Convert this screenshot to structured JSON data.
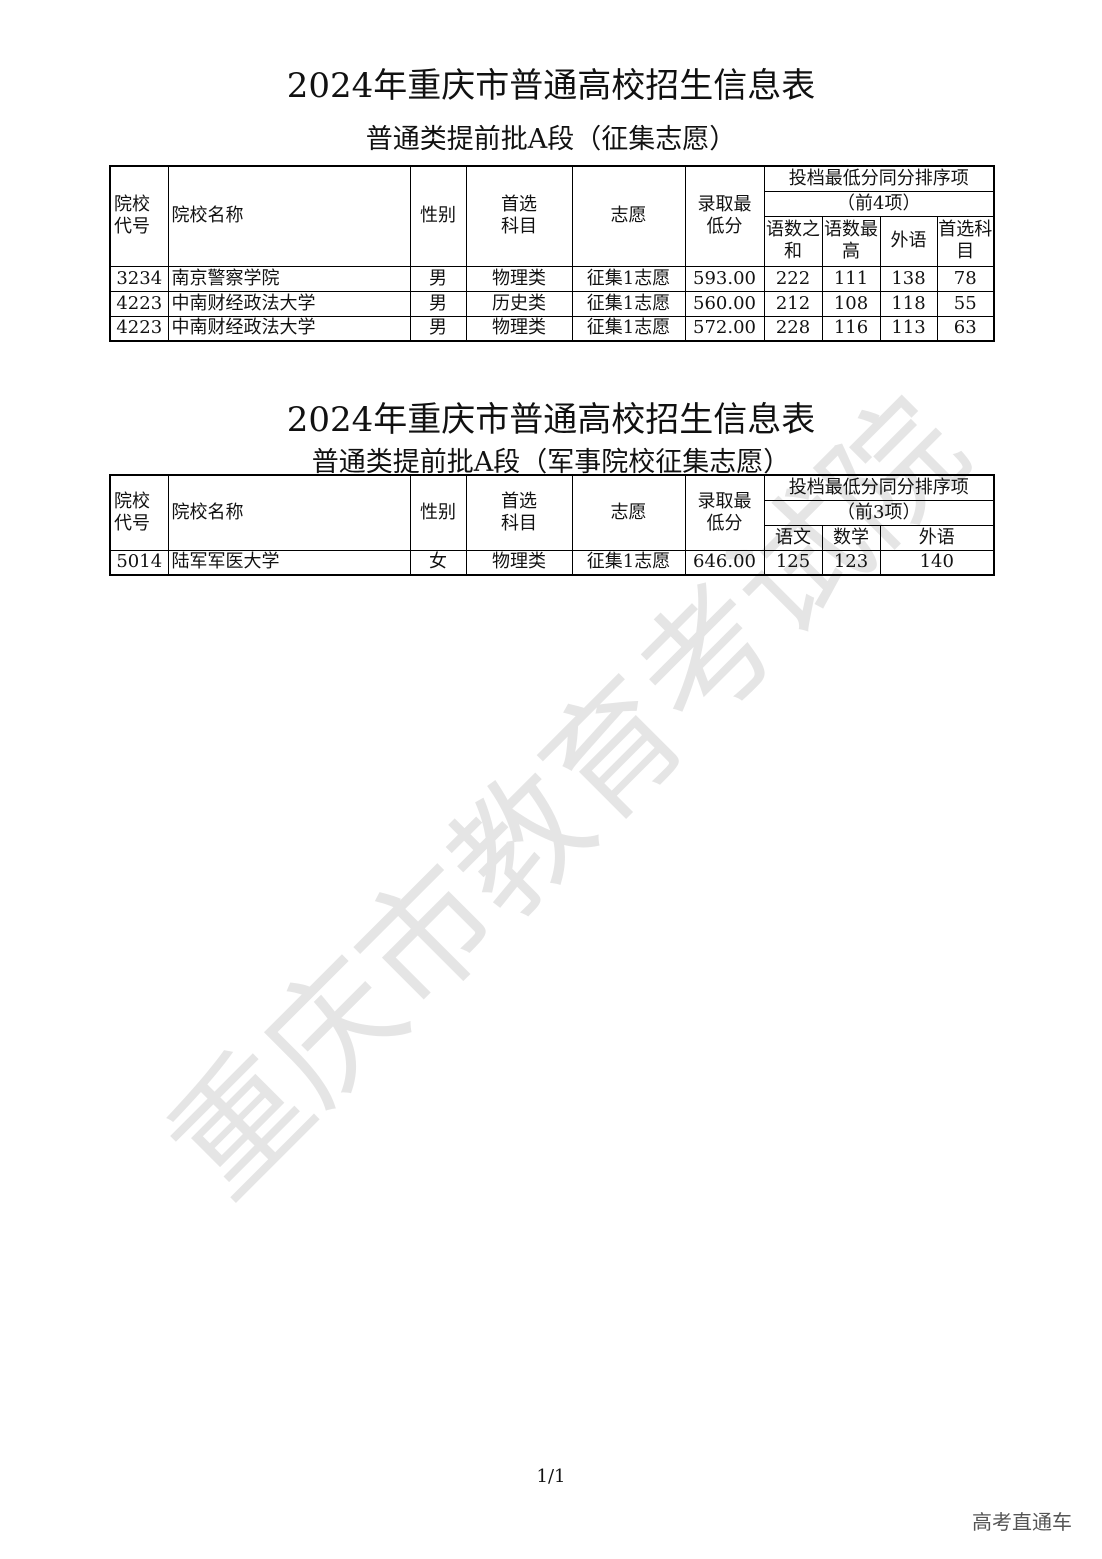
{
  "headers": {
    "code": "院校代号",
    "name": "院校名称",
    "gender": "性别",
    "subject": "首选科目",
    "wish": "志愿",
    "min_score": "录取最低分",
    "tie_rule": "投档最低分同分排序项"
  },
  "table1": {
    "title": "2024年重庆市普通高校招生信息表",
    "subtitle": "普通类提前批A段（征集志愿）",
    "tie_count": "（前4项）",
    "tie_cols": [
      "语数之和",
      "语数最高",
      "外语",
      "首选科目"
    ],
    "rows": [
      {
        "code": "3234",
        "name": "南京警察学院",
        "gender": "男",
        "subject": "物理类",
        "wish": "征集1志愿",
        "score": "593.00",
        "t": [
          "222",
          "111",
          "138",
          "78"
        ]
      },
      {
        "code": "4223",
        "name": "中南财经政法大学",
        "gender": "男",
        "subject": "历史类",
        "wish": "征集1志愿",
        "score": "560.00",
        "t": [
          "212",
          "108",
          "118",
          "55"
        ]
      },
      {
        "code": "4223",
        "name": "中南财经政法大学",
        "gender": "男",
        "subject": "物理类",
        "wish": "征集1志愿",
        "score": "572.00",
        "t": [
          "228",
          "116",
          "113",
          "63"
        ]
      }
    ]
  },
  "table2": {
    "title": "2024年重庆市普通高校招生信息表",
    "subtitle": "普通类提前批A段（军事院校征集志愿）",
    "tie_count": "（前3项）",
    "tie_cols": [
      "语文",
      "数学",
      "外语"
    ],
    "rows": [
      {
        "code": "5014",
        "name": "陆军军医大学",
        "gender": "女",
        "subject": "物理类",
        "wish": "征集1志愿",
        "score": "646.00",
        "t": [
          "125",
          "123",
          "140"
        ]
      }
    ]
  },
  "watermark": "重庆市教育考试院",
  "page_number": "1/1",
  "brand": "高考直通车"
}
